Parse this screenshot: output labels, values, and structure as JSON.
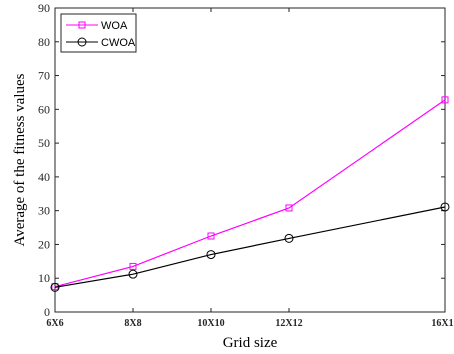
{
  "chart_data": {
    "type": "line",
    "x": [
      6,
      8,
      10,
      12,
      16
    ],
    "x_tick_labels": [
      "6X6",
      "8X8",
      "10X10",
      "12X12",
      "16X16"
    ],
    "y_ticks": [
      0,
      10,
      20,
      30,
      40,
      50,
      60,
      70,
      80,
      90
    ],
    "ylim": [
      0,
      90
    ],
    "xlabel": "Grid size",
    "ylabel": "Average of the fitness values",
    "grid": false,
    "legend_position": "top-left",
    "series": [
      {
        "name": "WOA",
        "values": [
          7.5,
          13.5,
          22.5,
          30.8,
          62.8
        ],
        "color": "#ff00ff",
        "marker": "square"
      },
      {
        "name": "CWOA",
        "values": [
          7.3,
          11.2,
          17.0,
          21.8,
          31.1
        ],
        "color": "#000000",
        "marker": "circle"
      }
    ]
  }
}
